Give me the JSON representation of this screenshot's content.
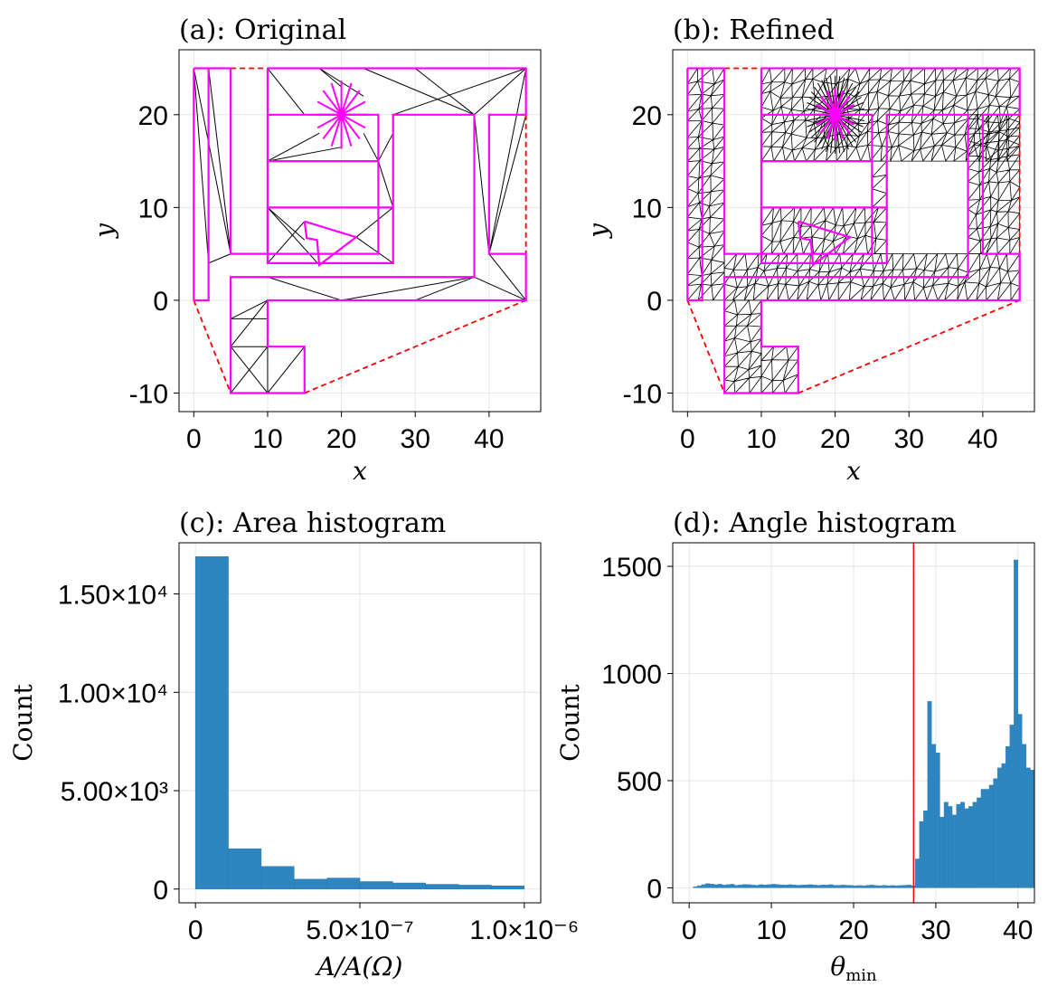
{
  "chart_data": [
    {
      "id": "a",
      "type": "mesh",
      "title": "(a): Original",
      "xlabel": "x",
      "ylabel": "y",
      "xlim": [
        -2,
        47
      ],
      "ylim": [
        -12,
        27
      ],
      "xticks": [
        "0",
        "10",
        "20",
        "30",
        "40"
      ],
      "xtick_values": [
        0,
        10,
        20,
        30,
        40
      ],
      "yticks": [
        "-10",
        "0",
        "10",
        "20"
      ],
      "ytick_values": [
        -10,
        0,
        10,
        20
      ],
      "grid": true,
      "boundary_color": "#ff00ff",
      "hull_color": "#ff0000",
      "mesh_color": "#000000",
      "boundary_polylines": [
        [
          [
            0,
            25
          ],
          [
            5,
            25
          ],
          [
            5,
            5
          ],
          [
            10,
            5
          ],
          [
            10,
            15
          ],
          [
            25,
            15
          ],
          [
            25,
            5
          ],
          [
            10,
            5
          ]
        ],
        [
          [
            10,
            25
          ],
          [
            45,
            25
          ],
          [
            45,
            20
          ],
          [
            40,
            20
          ],
          [
            40,
            5
          ],
          [
            45,
            5
          ],
          [
            45,
            0
          ],
          [
            10,
            0
          ],
          [
            10,
            -5
          ],
          [
            15,
            -5
          ],
          [
            15,
            -10
          ],
          [
            5,
            -10
          ],
          [
            5,
            2.5
          ],
          [
            38,
            2.5
          ],
          [
            38,
            20
          ],
          [
            27,
            20
          ],
          [
            27,
            4
          ],
          [
            10,
            4
          ],
          [
            10,
            10
          ],
          [
            27,
            10
          ]
        ],
        [
          [
            0,
            25
          ],
          [
            0,
            0
          ],
          [
            2,
            0
          ],
          [
            2,
            25
          ]
        ],
        [
          [
            10,
            25
          ],
          [
            10,
            15
          ],
          [
            25,
            15
          ],
          [
            25,
            20
          ],
          [
            10,
            20
          ]
        ],
        [
          [
            15,
            8.5
          ],
          [
            22,
            6.8
          ],
          [
            17,
            3.8
          ],
          [
            16.7,
            6.5
          ],
          [
            15.3,
            6.7
          ],
          [
            15,
            8.5
          ]
        ]
      ],
      "hull_segments": [
        [
          [
            5,
            25
          ],
          [
            10,
            25
          ]
        ],
        [
          [
            45,
            20
          ],
          [
            45,
            5
          ]
        ],
        [
          [
            0,
            0
          ],
          [
            5,
            -10
          ]
        ],
        [
          [
            15,
            -10
          ],
          [
            45,
            0
          ]
        ]
      ],
      "star_center": [
        20,
        20
      ],
      "star_radius": 3.5,
      "star_rays": 16,
      "mesh_lines": [
        [
          [
            0,
            25
          ],
          [
            2,
            4
          ]
        ],
        [
          [
            0,
            25
          ],
          [
            5,
            5
          ]
        ],
        [
          [
            2,
            25
          ],
          [
            5,
            5
          ]
        ],
        [
          [
            2,
            4
          ],
          [
            5,
            5
          ]
        ],
        [
          [
            10,
            25
          ],
          [
            17,
            25
          ]
        ],
        [
          [
            10,
            25
          ],
          [
            15,
            20
          ]
        ],
        [
          [
            17,
            25
          ],
          [
            20,
            23
          ]
        ],
        [
          [
            17,
            25
          ],
          [
            23,
            22
          ]
        ],
        [
          [
            10,
            15
          ],
          [
            17,
            18
          ]
        ],
        [
          [
            10,
            15
          ],
          [
            20,
            16.5
          ]
        ],
        [
          [
            25,
            15
          ],
          [
            23,
            18
          ]
        ],
        [
          [
            25,
            15
          ],
          [
            27,
            18
          ]
        ],
        [
          [
            45,
            25
          ],
          [
            27,
            20
          ]
        ],
        [
          [
            45,
            25
          ],
          [
            38,
            20
          ]
        ],
        [
          [
            23,
            25
          ],
          [
            38,
            20
          ]
        ],
        [
          [
            30,
            25
          ],
          [
            38,
            20
          ]
        ],
        [
          [
            38,
            20
          ],
          [
            40,
            5
          ]
        ],
        [
          [
            45,
            25
          ],
          [
            40,
            5
          ]
        ],
        [
          [
            45,
            20
          ],
          [
            40,
            5
          ]
        ],
        [
          [
            40,
            5
          ],
          [
            45,
            0
          ]
        ],
        [
          [
            10,
            10
          ],
          [
            15,
            6.5
          ]
        ],
        [
          [
            10,
            10
          ],
          [
            17,
            3.8
          ]
        ],
        [
          [
            15,
            8.5
          ],
          [
            10,
            4
          ]
        ],
        [
          [
            22,
            6.8
          ],
          [
            27,
            4
          ]
        ],
        [
          [
            22,
            6.8
          ],
          [
            27,
            10
          ]
        ],
        [
          [
            27,
            10
          ],
          [
            27,
            20
          ]
        ],
        [
          [
            25,
            15
          ],
          [
            27,
            10
          ]
        ],
        [
          [
            10,
            0
          ],
          [
            5,
            -5
          ]
        ],
        [
          [
            10,
            0
          ],
          [
            5,
            -2
          ]
        ],
        [
          [
            5,
            -5
          ],
          [
            10,
            -10
          ]
        ],
        [
          [
            10,
            -5
          ],
          [
            10,
            -10
          ]
        ],
        [
          [
            10,
            -10
          ],
          [
            15,
            -5
          ]
        ],
        [
          [
            5,
            -10
          ],
          [
            10,
            -5
          ]
        ],
        [
          [
            5,
            -5
          ],
          [
            10,
            -5
          ]
        ],
        [
          [
            5,
            -2
          ],
          [
            10,
            -2
          ]
        ],
        [
          [
            10,
            2.5
          ],
          [
            20,
            0
          ]
        ],
        [
          [
            20,
            0
          ],
          [
            38,
            2.5
          ]
        ],
        [
          [
            38,
            2.5
          ],
          [
            45,
            0
          ]
        ],
        [
          [
            30,
            0
          ],
          [
            38,
            2.5
          ]
        ]
      ]
    },
    {
      "id": "b",
      "type": "mesh",
      "title": "(b): Refined",
      "xlabel": "x",
      "ylabel": "y",
      "xlim": [
        -2,
        47
      ],
      "ylim": [
        -12,
        27
      ],
      "xticks": [
        "0",
        "10",
        "20",
        "30",
        "40"
      ],
      "xtick_values": [
        0,
        10,
        20,
        30,
        40
      ],
      "yticks": [
        "-10",
        "0",
        "10",
        "20"
      ],
      "ytick_values": [
        -10,
        0,
        10,
        20
      ],
      "grid": true,
      "boundary_color": "#ff00ff",
      "hull_color": "#ff0000",
      "mesh_color": "#000000",
      "star_center": [
        20,
        20
      ],
      "star_radius": 4,
      "star_rays": 40
    },
    {
      "id": "c",
      "type": "bar",
      "title": "(c): Area histogram",
      "xlabel": "A/A(Ω)",
      "ylabel": "Count",
      "xlim": [
        -5e-08,
        1.05e-06
      ],
      "ylim": [
        -700,
        17600
      ],
      "xticks": [
        "0",
        "5.0×10⁻⁷",
        "1.0×10⁻⁶"
      ],
      "xtick_values": [
        0,
        5e-07,
        1e-06
      ],
      "yticks": [
        "0",
        "5.00×10³",
        "1.00×10⁴",
        "1.50×10⁴"
      ],
      "ytick_values": [
        0,
        5000,
        10000,
        15000
      ],
      "grid": true,
      "bar_color": "#2e86c1",
      "bin_edges": [
        0,
        1e-07,
        2e-07,
        3e-07,
        4e-07,
        5e-07,
        6e-07,
        7e-07,
        8e-07,
        9e-07,
        1e-06
      ],
      "values": [
        16900,
        2050,
        1150,
        500,
        560,
        380,
        310,
        240,
        200,
        160
      ]
    },
    {
      "id": "d",
      "type": "bar",
      "title": "(d): Angle histogram",
      "xlabel": "θ",
      "xlabel_sub": "min",
      "ylabel": "Count",
      "xlim": [
        -2,
        42
      ],
      "ylim": [
        -70,
        1610
      ],
      "xticks": [
        "0",
        "10",
        "20",
        "30",
        "40"
      ],
      "xtick_values": [
        0,
        10,
        20,
        30,
        40
      ],
      "yticks": [
        "0",
        "500",
        "1000",
        "1500"
      ],
      "ytick_values": [
        0,
        500,
        1000,
        1500
      ],
      "grid": true,
      "bar_color": "#2e86c1",
      "reference_line_x": 27.3,
      "reference_line_color": "#ff0000",
      "bin_width": 0.5,
      "bin_start": 0,
      "values": [
        0,
        5,
        10,
        15,
        20,
        18,
        15,
        17,
        13,
        15,
        17,
        12,
        14,
        16,
        15,
        13,
        12,
        15,
        14,
        15,
        17,
        16,
        14,
        13,
        15,
        14,
        12,
        13,
        14,
        15,
        13,
        12,
        14,
        13,
        15,
        12,
        12,
        13,
        12,
        11,
        10,
        11,
        10,
        12,
        13,
        11,
        10,
        12,
        10,
        11,
        10,
        11,
        12,
        13,
        10,
        135,
        310,
        360,
        870,
        670,
        630,
        330,
        400,
        380,
        340,
        390,
        400,
        370,
        380,
        400,
        420,
        460,
        460,
        480,
        510,
        560,
        580,
        660,
        760,
        1530,
        810,
        670,
        560,
        550
      ]
    }
  ]
}
